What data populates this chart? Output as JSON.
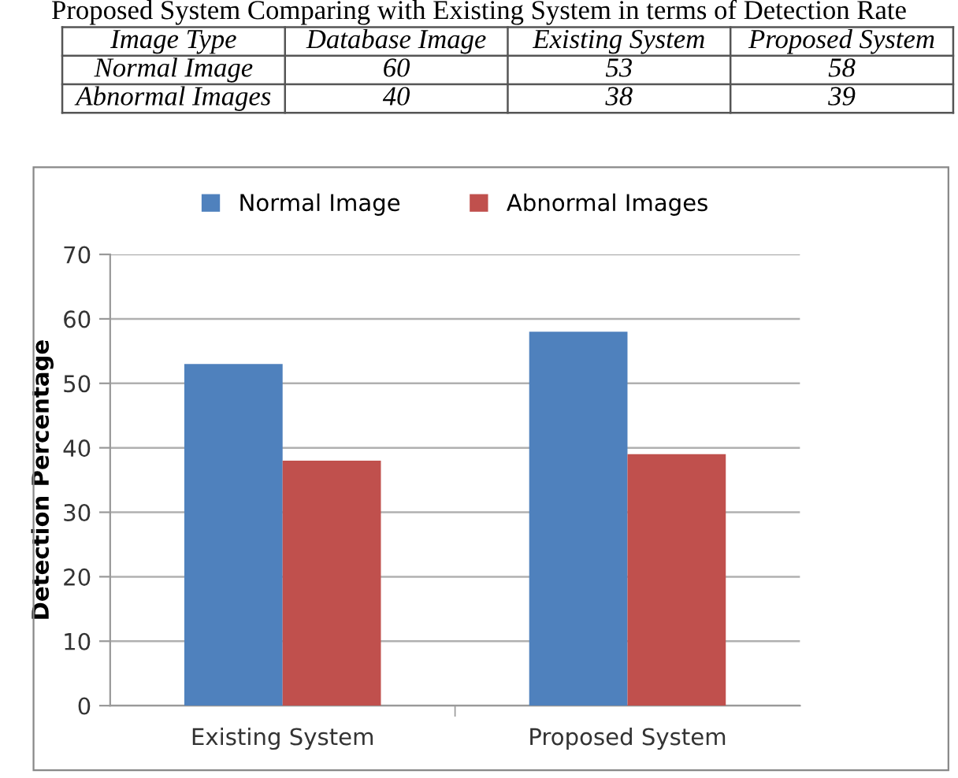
{
  "chart_data": [
    {
      "type": "other",
      "title": "Proposed System Comparing with Existing System in terms of Detection Rate",
      "annotations": [
        "Image Type",
        "Database Image",
        "Existing System",
        "Proposed System",
        "Normal Image",
        "60",
        "53",
        "58",
        "Abnormal Images",
        "40",
        "38",
        "39"
      ]
    },
    {
      "type": "bar",
      "categories": [
        "Existing System",
        "Proposed System"
      ],
      "series": [
        {
          "name": "Normal Image",
          "color": "#4f81bd",
          "values": [
            53,
            58
          ]
        },
        {
          "name": "Abnormal Images",
          "color": "#c0504d",
          "values": [
            38,
            39
          ]
        }
      ],
      "ylabel": "Detection Percentage",
      "ylim": [
        0,
        70
      ],
      "yticks": [
        0,
        10,
        20,
        30,
        40,
        50,
        60,
        70
      ],
      "grid": "y",
      "legend": "top"
    }
  ]
}
